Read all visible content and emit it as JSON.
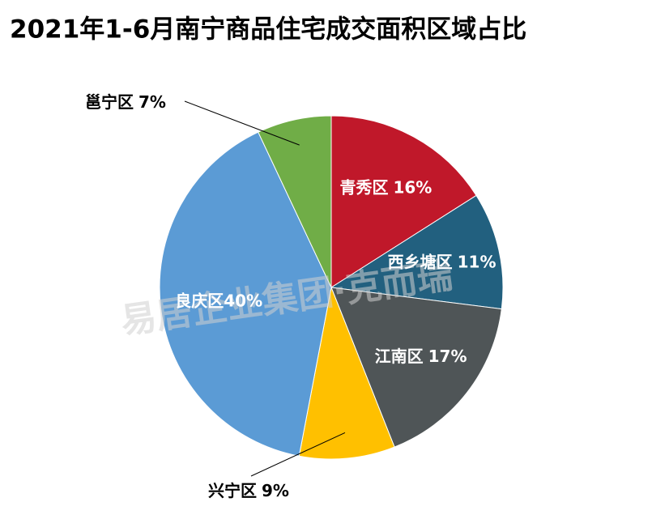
{
  "chart_data": {
    "type": "pie",
    "title": "2021年1-6月南宁商品住宅成交面积区域占比",
    "categories": [
      "青秀区",
      "西乡塘区",
      "江南区",
      "兴宁区",
      "良庆区",
      "邕宁区"
    ],
    "values": [
      16,
      11,
      17,
      9,
      40,
      7
    ],
    "value_labels": [
      "16%",
      "11%",
      "17%",
      "9%",
      "40%",
      "7%"
    ],
    "colors": [
      "#c0182a",
      "#22607f",
      "#4f5557",
      "#ffc000",
      "#5b9bd5",
      "#70ad47"
    ],
    "watermark": "易居企业集团·克而瑞"
  }
}
